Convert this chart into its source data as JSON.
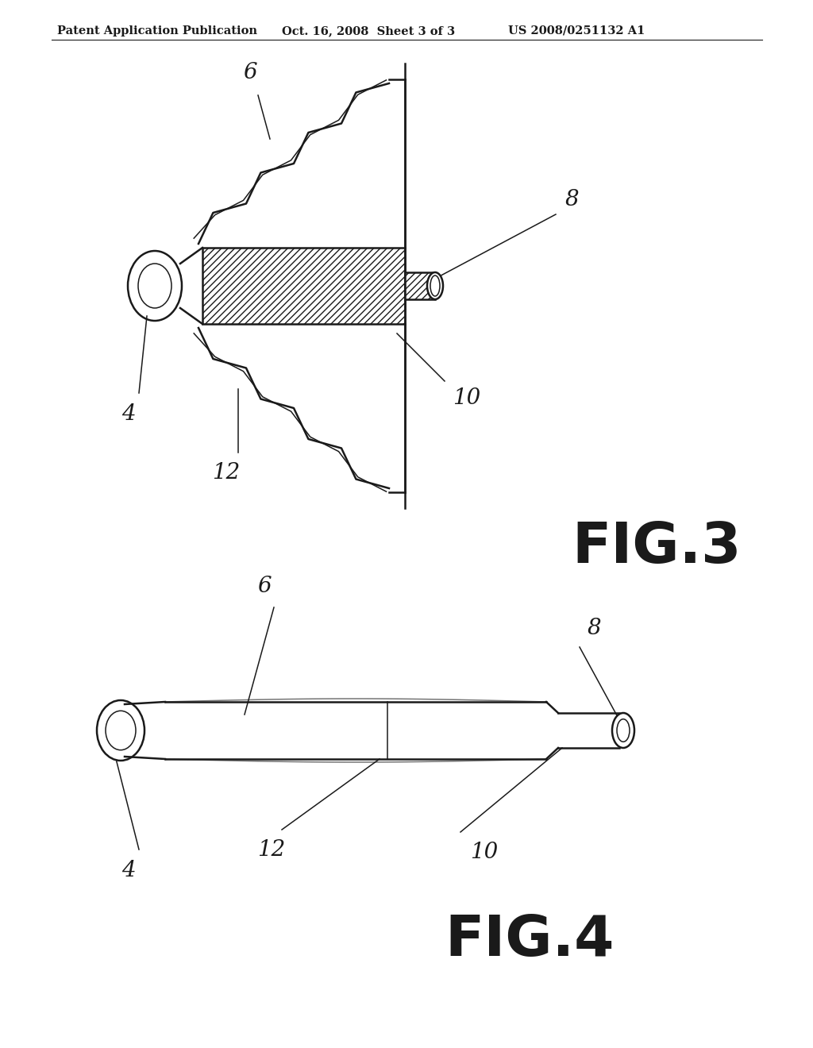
{
  "bg_color": "#ffffff",
  "header_left": "Patent Application Publication",
  "header_mid": "Oct. 16, 2008  Sheet 3 of 3",
  "header_right": "US 2008/0251132 A1",
  "header_fontsize": 10.5,
  "fig3_label": "FIG.3",
  "fig4_label": "FIG.4",
  "fig_label_fontsize": 52,
  "callout_fontsize": 20,
  "line_color": "#1a1a1a"
}
